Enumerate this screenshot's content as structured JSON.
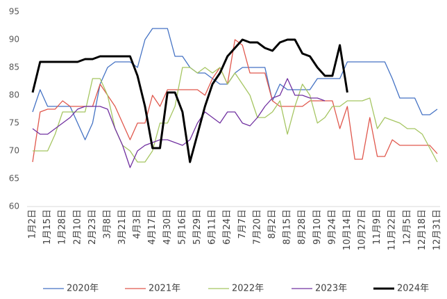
{
  "chart_data": {
    "type": "line",
    "categories": [
      "1月2日",
      null,
      "1月15日",
      null,
      "1月28日",
      null,
      "2月10日",
      null,
      "2月23日",
      null,
      "3月8日",
      null,
      "3月21日",
      null,
      "4月3日",
      null,
      "4月17日",
      null,
      "4月30日",
      null,
      "5月16日",
      null,
      "5月29日",
      null,
      "6月11日",
      null,
      "6月24日",
      null,
      "7月7日",
      null,
      "7月20日",
      null,
      "8月2日",
      null,
      "8月15日",
      null,
      "8月28日",
      null,
      "9月10日",
      null,
      "9月24日",
      null,
      "10月14日",
      null,
      "10月27日",
      null,
      "11月9日",
      null,
      "11月22日",
      null,
      "12月5日",
      null,
      "12月18日",
      null,
      "12月31日"
    ],
    "series": [
      {
        "name": "2020年",
        "color": "#4472c4",
        "line_width": 1.3,
        "values": [
          77,
          81,
          78,
          78,
          78,
          78,
          75,
          72,
          75,
          82,
          85,
          86,
          86,
          86,
          85,
          90,
          92,
          92,
          92,
          87,
          87,
          85,
          84,
          84,
          83,
          82,
          82,
          84,
          85,
          85,
          85,
          85,
          79,
          82,
          81,
          81,
          81,
          81,
          83,
          83,
          83,
          83,
          86,
          86,
          86,
          86,
          86,
          86,
          83,
          79.5,
          79.5,
          79.5,
          76.5,
          76.5,
          77.5
        ]
      },
      {
        "name": "2021年",
        "color": "#e0574c",
        "line_width": 1.3,
        "values": [
          68,
          77,
          77.5,
          77.5,
          79,
          78,
          78,
          78,
          78,
          82,
          80,
          78,
          75,
          72,
          75,
          75,
          80,
          78,
          81,
          81,
          81,
          81,
          81,
          80,
          83,
          85,
          82,
          90,
          89,
          84,
          84,
          84,
          79,
          78,
          78,
          78,
          78,
          79,
          79,
          79,
          79,
          74,
          78,
          68.5,
          68.5,
          76,
          69,
          69,
          72,
          71,
          71,
          71,
          71,
          71,
          69.5
        ]
      },
      {
        "name": "2022年",
        "color": "#a5c561",
        "line_width": 1.3,
        "values": [
          70,
          70,
          70,
          73,
          77,
          77,
          77,
          77,
          83,
          83,
          80,
          74,
          71,
          70,
          68,
          68,
          70,
          75,
          75,
          78,
          85,
          85,
          84,
          85,
          84,
          85,
          82,
          84,
          82,
          80,
          76,
          76,
          77,
          79,
          73,
          78,
          82,
          80,
          75,
          76,
          78,
          78,
          79,
          79,
          79,
          79.5,
          74,
          76,
          75.5,
          75,
          74,
          74,
          73,
          70.5,
          68
        ]
      },
      {
        "name": "2023年",
        "color": "#7030a0",
        "line_width": 1.3,
        "values": [
          74,
          73,
          73,
          74,
          75,
          76,
          77.5,
          78,
          78,
          78,
          77.5,
          74,
          71,
          67,
          70,
          71,
          71.5,
          72,
          72,
          71.5,
          71,
          72,
          75,
          77,
          76,
          75,
          77,
          77,
          75,
          74.5,
          76,
          78,
          79.5,
          80,
          83,
          80,
          80,
          79.5,
          79.5,
          79,
          null,
          null,
          null,
          null,
          null,
          null,
          null,
          null,
          null,
          null,
          null,
          null,
          null,
          null,
          null
        ]
      },
      {
        "name": "2024年",
        "color": "#000000",
        "line_width": 3,
        "values": [
          80.5,
          86,
          86,
          86,
          86,
          86,
          86,
          86.5,
          86.5,
          87,
          87,
          87,
          87,
          87,
          83.5,
          78,
          70.5,
          70.5,
          80.5,
          80.5,
          77,
          68,
          73,
          78,
          82,
          84,
          87,
          88.5,
          90,
          89.5,
          89.5,
          88.5,
          88,
          89.5,
          90,
          90,
          87.5,
          87,
          85,
          83.5,
          83.5,
          89,
          80.5,
          null,
          null,
          null,
          null,
          null,
          null,
          null,
          null,
          null,
          null,
          null,
          null
        ]
      }
    ],
    "ylim": [
      60,
      95
    ],
    "yticks": [
      60,
      65,
      70,
      75,
      80,
      85,
      90,
      95
    ],
    "grid": false,
    "legend": "bottom"
  }
}
